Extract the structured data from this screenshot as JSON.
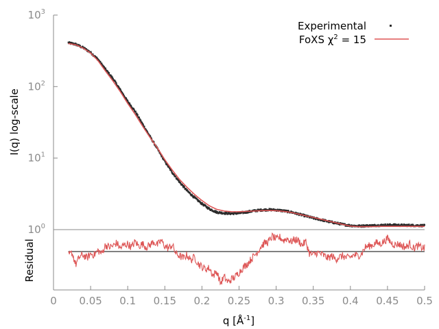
{
  "chart_data": {
    "type": "scatter",
    "colors": {
      "experimental": "#2b2b2b",
      "fit": "#dd5555",
      "axis": "#8a8a8a",
      "zero_line": "#000000"
    },
    "top_panel": {
      "ylabel": "I(q) log-scale",
      "y_scale": "log",
      "ylim": [
        1,
        1000
      ],
      "y_ticks": [
        {
          "base": "10",
          "exp": "0",
          "value": 1
        },
        {
          "base": "10",
          "exp": "1",
          "value": 10
        },
        {
          "base": "10",
          "exp": "2",
          "value": 100
        },
        {
          "base": "10",
          "exp": "3",
          "value": 1000
        }
      ],
      "legend": {
        "position": "top-right",
        "entries": [
          {
            "label": "Experimental",
            "marker": "point"
          },
          {
            "label_main": "FoXS χ",
            "label_sup": "2",
            "label_tail": " = 15",
            "marker": "line"
          }
        ]
      },
      "series": [
        {
          "name": "Experimental",
          "style": "points",
          "x": [
            0.02,
            0.03,
            0.04,
            0.05,
            0.06,
            0.07,
            0.08,
            0.09,
            0.1,
            0.11,
            0.12,
            0.13,
            0.14,
            0.15,
            0.16,
            0.17,
            0.18,
            0.19,
            0.2,
            0.21,
            0.22,
            0.23,
            0.24,
            0.25,
            0.26,
            0.27,
            0.28,
            0.29,
            0.3,
            0.31,
            0.32,
            0.33,
            0.34,
            0.35,
            0.36,
            0.37,
            0.38,
            0.39,
            0.4,
            0.41,
            0.42,
            0.43,
            0.44,
            0.45,
            0.46,
            0.47,
            0.48,
            0.49,
            0.5
          ],
          "y": [
            410,
            390,
            350,
            300,
            240,
            175,
            130,
            90,
            62,
            45,
            30,
            20,
            13.5,
            9.0,
            6.3,
            4.6,
            3.5,
            2.8,
            2.3,
            1.95,
            1.75,
            1.7,
            1.68,
            1.7,
            1.76,
            1.83,
            1.88,
            1.9,
            1.88,
            1.83,
            1.76,
            1.65,
            1.55,
            1.45,
            1.38,
            1.3,
            1.24,
            1.18,
            1.14,
            1.12,
            1.13,
            1.14,
            1.15,
            1.16,
            1.16,
            1.15,
            1.15,
            1.14,
            1.14
          ]
        },
        {
          "name": "FoXS χ2 = 15",
          "style": "line",
          "x": [
            0.02,
            0.03,
            0.04,
            0.05,
            0.06,
            0.07,
            0.08,
            0.09,
            0.1,
            0.11,
            0.12,
            0.13,
            0.14,
            0.15,
            0.16,
            0.17,
            0.18,
            0.19,
            0.2,
            0.21,
            0.22,
            0.23,
            0.24,
            0.25,
            0.26,
            0.27,
            0.28,
            0.29,
            0.3,
            0.31,
            0.32,
            0.33,
            0.34,
            0.35,
            0.36,
            0.37,
            0.38,
            0.39,
            0.4,
            0.41,
            0.42,
            0.43,
            0.44,
            0.45,
            0.46,
            0.47,
            0.48,
            0.49,
            0.5
          ],
          "y": [
            400,
            385,
            345,
            295,
            230,
            165,
            120,
            85,
            58,
            41,
            28,
            19.5,
            13.8,
            9.5,
            6.8,
            5.0,
            3.9,
            3.1,
            2.55,
            2.15,
            1.92,
            1.82,
            1.78,
            1.78,
            1.8,
            1.82,
            1.84,
            1.85,
            1.84,
            1.8,
            1.74,
            1.65,
            1.56,
            1.48,
            1.4,
            1.32,
            1.25,
            1.18,
            1.12,
            1.1,
            1.1,
            1.1,
            1.11,
            1.11,
            1.11,
            1.11,
            1.11,
            1.11,
            1.11
          ]
        }
      ]
    },
    "bottom_panel": {
      "ylabel": "Residual",
      "xlabel_main": "q [Å",
      "xlabel_sup": "-1",
      "xlabel_tail": "]",
      "xlim": [
        0,
        0.5
      ],
      "x_ticks": [
        "0",
        "0.05",
        "0.1",
        "0.15",
        "0.2",
        "0.25",
        "0.3",
        "0.35",
        "0.4",
        "0.45",
        "0.5"
      ],
      "ylim": [
        -3.5,
        2.0
      ],
      "zero_line": 0,
      "series": [
        {
          "name": "Residual",
          "style": "line",
          "x": [
            0.02,
            0.025,
            0.03,
            0.035,
            0.04,
            0.045,
            0.05,
            0.055,
            0.06,
            0.065,
            0.07,
            0.075,
            0.08,
            0.085,
            0.09,
            0.095,
            0.1,
            0.105,
            0.11,
            0.115,
            0.12,
            0.125,
            0.13,
            0.135,
            0.14,
            0.145,
            0.15,
            0.155,
            0.16,
            0.165,
            0.17,
            0.175,
            0.18,
            0.185,
            0.19,
            0.195,
            0.2,
            0.205,
            0.21,
            0.215,
            0.22,
            0.225,
            0.23,
            0.235,
            0.24,
            0.245,
            0.25,
            0.255,
            0.26,
            0.265,
            0.27,
            0.275,
            0.28,
            0.285,
            0.29,
            0.295,
            0.3,
            0.305,
            0.31,
            0.315,
            0.32,
            0.325,
            0.33,
            0.335,
            0.34,
            0.345,
            0.35,
            0.355,
            0.36,
            0.365,
            0.37,
            0.375,
            0.38,
            0.385,
            0.39,
            0.395,
            0.4,
            0.405,
            0.41,
            0.415,
            0.42,
            0.425,
            0.43,
            0.435,
            0.44,
            0.445,
            0.45,
            0.455,
            0.46,
            0.465,
            0.47,
            0.475,
            0.48,
            0.485,
            0.49,
            0.495,
            0.5
          ],
          "y": [
            -0.4,
            -0.1,
            -1.2,
            -0.5,
            -0.3,
            -0.6,
            -0.2,
            -0.3,
            0.1,
            -0.2,
            0.6,
            0.4,
            0.5,
            0.8,
            0.3,
            0.6,
            0.7,
            0.4,
            0.9,
            0.5,
            0.7,
            0.4,
            0.6,
            0.9,
            0.6,
            1.0,
            0.5,
            0.3,
            0.6,
            -0.2,
            -0.4,
            -0.6,
            -0.3,
            -0.8,
            -0.5,
            -1.1,
            -1.4,
            -1.6,
            -1.5,
            -2.2,
            -1.8,
            -2.9,
            -2.3,
            -2.8,
            -2.5,
            -2.3,
            -1.9,
            -1.5,
            -1.2,
            -0.8,
            -0.4,
            0.0,
            0.5,
            0.8,
            0.9,
            1.4,
            1.1,
            1.3,
            1.0,
            1.2,
            0.9,
            1.1,
            1.0,
            0.6,
            0.9,
            -0.2,
            -0.3,
            -0.1,
            -0.2,
            -0.4,
            -0.6,
            -0.4,
            -0.7,
            -0.5,
            -0.4,
            -0.6,
            -0.5,
            -0.3,
            -0.4,
            -0.2,
            0.4,
            0.5,
            0.6,
            0.8,
            0.7,
            0.9,
            1.2,
            0.8,
            0.6,
            0.7,
            0.5,
            0.4,
            0.7,
            0.3,
            0.5,
            0.4,
            0.3
          ]
        }
      ]
    }
  }
}
